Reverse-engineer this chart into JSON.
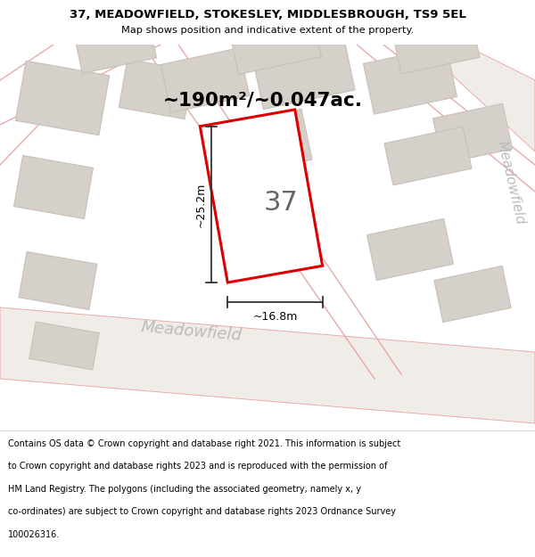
{
  "title_line1": "37, MEADOWFIELD, STOKESLEY, MIDDLESBROUGH, TS9 5EL",
  "title_line2": "Map shows position and indicative extent of the property.",
  "area_text": "~190m²/~0.047ac.",
  "dimension_height": "~25.2m",
  "dimension_width": "~16.8m",
  "plot_number": "37",
  "street_label_bottom": "Meadowfield",
  "street_label_right": "Meadowfield",
  "footer_lines": [
    "Contains OS data © Crown copyright and database right 2021. This information is subject",
    "to Crown copyright and database rights 2023 and is reproduced with the permission of",
    "HM Land Registry. The polygons (including the associated geometry, namely x, y",
    "co-ordinates) are subject to Crown copyright and database rights 2023 Ordnance Survey",
    "100026316."
  ],
  "map_bg_color": "#edeae6",
  "plot_fill": "#ffffff",
  "plot_outline": "#dd0000",
  "building_fill": "#d6d0ca",
  "building_outline": "#c8c0b8",
  "road_line_color": "#e8a0a0",
  "road_fill": "#f0ece8",
  "header_bg": "#ffffff",
  "footer_bg": "#ffffff",
  "line_color": "#333333",
  "street_color": "#bbbbbb",
  "plot_label_color": "#666666"
}
